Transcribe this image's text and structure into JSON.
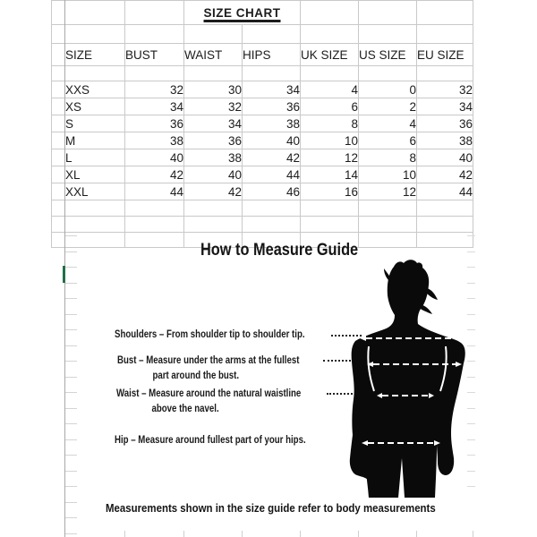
{
  "spreadsheet": {
    "title": "SIZE CHART",
    "columns": [
      "SIZE",
      "BUST",
      "WAIST",
      "HIPS",
      "UK SIZE",
      "US SIZE",
      "EU SIZE"
    ],
    "rows": [
      [
        "XXS",
        "32",
        "30",
        "34",
        "4",
        "0",
        "32"
      ],
      [
        "XS",
        "34",
        "32",
        "36",
        "6",
        "2",
        "34"
      ],
      [
        "S",
        "36",
        "34",
        "38",
        "8",
        "4",
        "36"
      ],
      [
        "M",
        "38",
        "36",
        "40",
        "10",
        "6",
        "38"
      ],
      [
        "L",
        "40",
        "38",
        "42",
        "12",
        "8",
        "40"
      ],
      [
        "XL",
        "42",
        "40",
        "44",
        "14",
        "10",
        "42"
      ],
      [
        "XXL",
        "44",
        "42",
        "46",
        "16",
        "12",
        "44"
      ]
    ]
  },
  "measure_guide": {
    "title": "How to Measure Guide",
    "items": [
      {
        "label": "shoulders",
        "line1": "Shoulders – From shoulder tip to shoulder tip.",
        "line2": ""
      },
      {
        "label": "bust",
        "line1": "Bust – Measure under the arms at the fullest",
        "line2": "part around the bust."
      },
      {
        "label": "waist",
        "line1": "Waist – Measure around the natural waistline",
        "line2": "above the navel."
      },
      {
        "label": "hip",
        "line1": "Hip – Measure around fullest part of your hips.",
        "line2": ""
      }
    ],
    "footer": "Measurements shown in the size guide refer to body measurements"
  },
  "colors": {
    "gridline": "#c9c9c9",
    "gridline_dark": "#a8a8a8",
    "selection_green": "#1e7145",
    "text": "#1a1a1a",
    "silhouette": "#0a0a0a"
  }
}
